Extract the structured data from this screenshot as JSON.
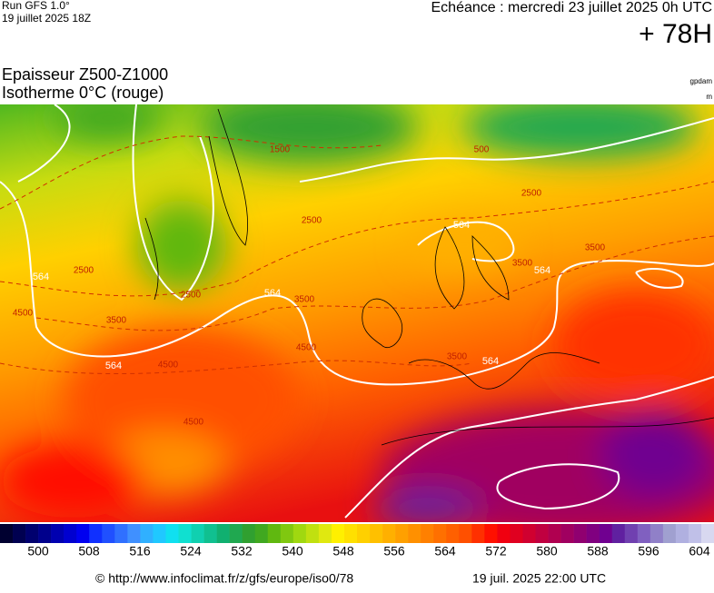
{
  "header": {
    "run": "Run GFS 1.0°",
    "run_date": "19 juillet 2025 18Z",
    "echeance": "Echéance : mercredi 23 juillet 2025 0h UTC",
    "lead": "+ 78H",
    "title_line1": "Epaisseur Z500-Z1000",
    "title_line2": "Isotherme 0°C (rouge)",
    "unit1": "gpdam",
    "unit2": "m"
  },
  "map": {
    "thickness_labels": [
      "564",
      "564",
      "564",
      "564",
      "564",
      "564"
    ],
    "isotherm_labels": [
      "2500",
      "2500",
      "2500",
      "2500",
      "3500",
      "3500",
      "3500",
      "3500",
      "3500",
      "4500",
      "4500",
      "4500",
      "4500",
      "1500",
      "500"
    ]
  },
  "colorbar": {
    "colors": [
      "#000030",
      "#000050",
      "#00006e",
      "#00008c",
      "#0000b0",
      "#0000d0",
      "#0000f0",
      "#1030ff",
      "#2050ff",
      "#3070ff",
      "#4090ff",
      "#30b0ff",
      "#20c8ff",
      "#10e0f0",
      "#10e0d0",
      "#10d0b0",
      "#10c090",
      "#10b070",
      "#20a850",
      "#30a030",
      "#40a820",
      "#60b810",
      "#80c810",
      "#a0d810",
      "#c0e010",
      "#e0e810",
      "#fff000",
      "#ffe000",
      "#ffd000",
      "#ffc000",
      "#ffb000",
      "#ffa000",
      "#ff9000",
      "#ff8000",
      "#ff7000",
      "#ff6000",
      "#ff5000",
      "#ff3000",
      "#ff1000",
      "#f00010",
      "#e00020",
      "#d00030",
      "#c00040",
      "#b00050",
      "#a00060",
      "#900070",
      "#800080",
      "#700090",
      "#6020a0",
      "#7040b0",
      "#8060c0",
      "#9080c8",
      "#a0a0d0",
      "#b0b0e0",
      "#c0c0e8",
      "#d8d8f0"
    ],
    "labels": [
      500,
      508,
      516,
      524,
      532,
      540,
      548,
      556,
      564,
      572,
      580,
      588,
      596,
      604
    ]
  },
  "footer": {
    "url": "© http://www.infoclimat.fr/z/gfs/europe/iso0/78",
    "generated": "19 juil. 2025 22:00 UTC"
  }
}
